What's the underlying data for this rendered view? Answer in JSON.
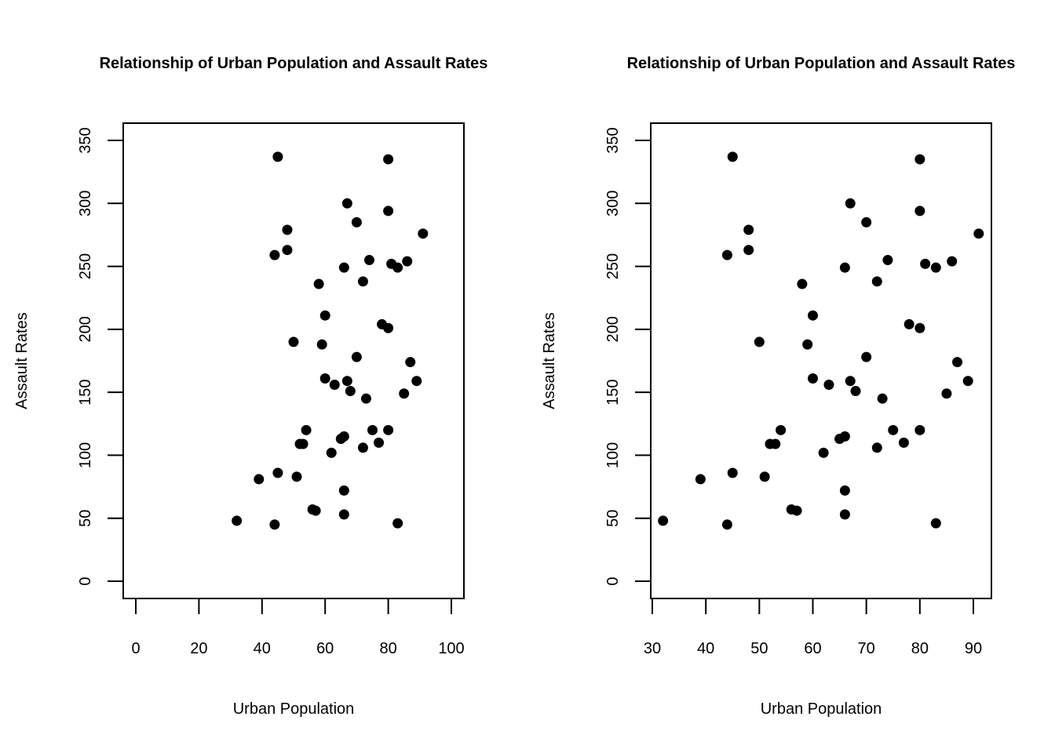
{
  "chart_data": [
    {
      "type": "scatter",
      "title": "Relationship of Urban Population and Assault Rates",
      "xlabel": "Urban Population",
      "ylabel": "Assault Rates",
      "xlim": [
        0,
        100
      ],
      "ylim": [
        0,
        350
      ],
      "xticks": [
        "0",
        "20",
        "40",
        "60",
        "80",
        "100"
      ],
      "yticks": [
        "0",
        "50",
        "100",
        "150",
        "200",
        "250",
        "300",
        "350"
      ],
      "grid": false,
      "point_color": "#000000",
      "x": [
        58,
        48,
        80,
        50,
        91,
        78,
        77,
        72,
        80,
        60,
        83,
        54,
        83,
        65,
        57,
        66,
        52,
        66,
        51,
        67,
        85,
        74,
        66,
        44,
        70,
        53,
        62,
        81,
        56,
        89,
        70,
        86,
        45,
        44,
        75,
        68,
        67,
        72,
        87,
        48,
        45,
        59,
        80,
        80,
        32,
        63,
        73,
        39,
        66,
        60
      ],
      "y": [
        236,
        263,
        294,
        190,
        276,
        204,
        110,
        238,
        335,
        211,
        46,
        120,
        249,
        113,
        56,
        115,
        109,
        249,
        83,
        300,
        149,
        255,
        72,
        259,
        178,
        109,
        102,
        252,
        57,
        159,
        285,
        254,
        337,
        45,
        120,
        151,
        159,
        106,
        174,
        279,
        86,
        188,
        201,
        120,
        48,
        156,
        145,
        81,
        53,
        161
      ]
    },
    {
      "type": "scatter",
      "title": "Relationship of Urban Population and Assault Rates",
      "xlabel": "Urban Population",
      "ylabel": "Assault Rates",
      "xlim": [
        30,
        92
      ],
      "ylim": [
        0,
        350
      ],
      "xticks": [
        "30",
        "40",
        "50",
        "60",
        "70",
        "80",
        "90"
      ],
      "yticks": [
        "0",
        "50",
        "100",
        "150",
        "200",
        "250",
        "300",
        "350"
      ],
      "grid": false,
      "point_color": "#000000",
      "x": [
        58,
        48,
        80,
        50,
        91,
        78,
        77,
        72,
        80,
        60,
        83,
        54,
        83,
        65,
        57,
        66,
        52,
        66,
        51,
        67,
        85,
        74,
        66,
        44,
        70,
        53,
        62,
        81,
        56,
        89,
        70,
        86,
        45,
        44,
        75,
        68,
        67,
        72,
        87,
        48,
        45,
        59,
        80,
        80,
        32,
        63,
        73,
        39,
        66,
        60
      ],
      "y": [
        236,
        263,
        294,
        190,
        276,
        204,
        110,
        238,
        335,
        211,
        46,
        120,
        249,
        113,
        56,
        115,
        109,
        249,
        83,
        300,
        149,
        255,
        72,
        259,
        178,
        109,
        102,
        252,
        57,
        159,
        285,
        254,
        337,
        45,
        120,
        151,
        159,
        106,
        174,
        279,
        86,
        188,
        201,
        120,
        48,
        156,
        145,
        81,
        53,
        161
      ]
    }
  ]
}
